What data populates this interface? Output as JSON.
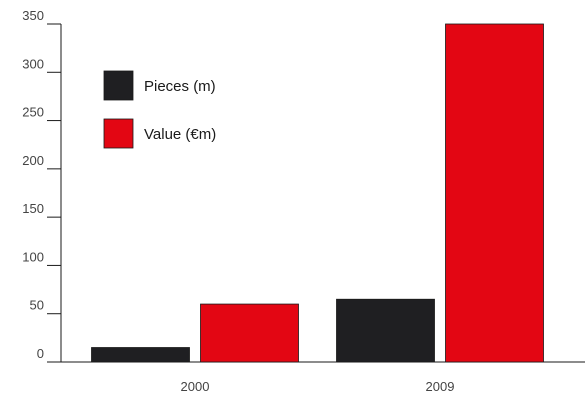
{
  "chart_data": {
    "type": "bar",
    "categories": [
      "2000",
      "2009"
    ],
    "series": [
      {
        "name": "Pieces (m)",
        "color": "#1f1f22",
        "values": [
          15,
          65
        ]
      },
      {
        "name": "Value (€m)",
        "color": "#e30613",
        "values": [
          60,
          350
        ]
      }
    ],
    "title": "",
    "xlabel": "",
    "ylabel": "",
    "ylim": [
      0,
      350
    ],
    "yticks": [
      "0",
      "50",
      "100",
      "150",
      "200",
      "250",
      "300",
      "350"
    ],
    "grid": false,
    "legend_position": "top-left"
  }
}
